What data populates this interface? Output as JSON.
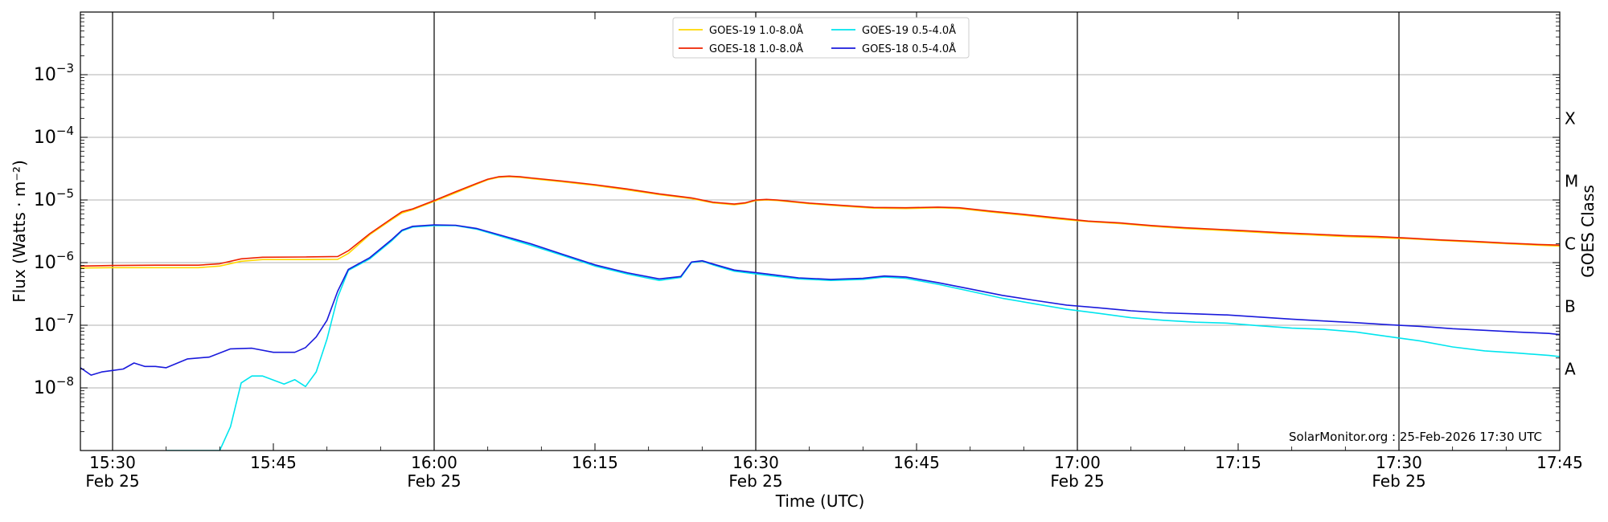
{
  "chart_data": {
    "type": "line",
    "xlabel": "Time (UTC)",
    "ylabel": "Flux (Watts · m⁻²)",
    "y2label": "GOES Class",
    "yscale": "log",
    "xlim": [
      "2026-02-25T15:27",
      "2026-02-25T17:45"
    ],
    "ylim": [
      1e-09,
      0.01
    ],
    "grid": "horizontal",
    "legend_position": "top-center",
    "footer": "SolarMonitor.org : 25-Feb-2026 17:30 UTC",
    "x_ticks": [
      {
        "time": "2026-02-25T15:30",
        "label": "15:30",
        "sublabel": "Feb 25"
      },
      {
        "time": "2026-02-25T15:45",
        "label": "15:45",
        "sublabel": ""
      },
      {
        "time": "2026-02-25T16:00",
        "label": "16:00",
        "sublabel": "Feb 25"
      },
      {
        "time": "2026-02-25T16:15",
        "label": "16:15",
        "sublabel": ""
      },
      {
        "time": "2026-02-25T16:30",
        "label": "16:30",
        "sublabel": "Feb 25"
      },
      {
        "time": "2026-02-25T16:45",
        "label": "16:45",
        "sublabel": ""
      },
      {
        "time": "2026-02-25T17:00",
        "label": "17:00",
        "sublabel": "Feb 25"
      },
      {
        "time": "2026-02-25T17:15",
        "label": "17:15",
        "sublabel": ""
      },
      {
        "time": "2026-02-25T17:30",
        "label": "17:30",
        "sublabel": "Feb 25"
      },
      {
        "time": "2026-02-25T17:45",
        "label": "17:45",
        "sublabel": ""
      }
    ],
    "vertical_lines": [
      "2026-02-25T15:30",
      "2026-02-25T16:00",
      "2026-02-25T16:30",
      "2026-02-25T17:00",
      "2026-02-25T17:30"
    ],
    "y_ticks": [
      {
        "base": "10",
        "exp": "−3",
        "value": 0.001
      },
      {
        "base": "10",
        "exp": "−4",
        "value": 0.0001
      },
      {
        "base": "10",
        "exp": "−5",
        "value": 1e-05
      },
      {
        "base": "10",
        "exp": "−6",
        "value": 1e-06
      },
      {
        "base": "10",
        "exp": "−7",
        "value": 1e-07
      },
      {
        "base": "10",
        "exp": "−8",
        "value": 1e-08
      }
    ],
    "goes_classes": [
      {
        "label": "X",
        "value": 0.0002
      },
      {
        "label": "M",
        "value": 2e-05
      },
      {
        "label": "C",
        "value": 2e-06
      },
      {
        "label": "B",
        "value": 2e-07
      },
      {
        "label": "A",
        "value": 2e-08
      }
    ],
    "series": [
      {
        "name": "GOES-19 1.0-8.0Å",
        "color": "#ffd700",
        "points": [
          [
            "15:27",
            8.2e-07
          ],
          [
            "15:30",
            8.3e-07
          ],
          [
            "15:34",
            8.3e-07
          ],
          [
            "15:38",
            8.3e-07
          ],
          [
            "15:40",
            8.8e-07
          ],
          [
            "15:42",
            1.05e-06
          ],
          [
            "15:44",
            1.12e-06
          ],
          [
            "15:48",
            1.12e-06
          ],
          [
            "15:51",
            1.13e-06
          ],
          [
            "15:52",
            1.4e-06
          ],
          [
            "15:54",
            2.8e-06
          ],
          [
            "15:56",
            4.8e-06
          ],
          [
            "15:57",
            6.2e-06
          ],
          [
            "15:58",
            7e-06
          ],
          [
            "16:00",
            9.5e-06
          ],
          [
            "16:02",
            1.3e-05
          ],
          [
            "16:04",
            1.8e-05
          ],
          [
            "16:05",
            2.1e-05
          ],
          [
            "16:06",
            2.3e-05
          ],
          [
            "16:07",
            2.35e-05
          ],
          [
            "16:08",
            2.3e-05
          ],
          [
            "16:09",
            2.2e-05
          ],
          [
            "16:12",
            1.95e-05
          ],
          [
            "16:15",
            1.7e-05
          ],
          [
            "16:18",
            1.45e-05
          ],
          [
            "16:21",
            1.22e-05
          ],
          [
            "16:24",
            1.05e-05
          ],
          [
            "16:26",
            9e-06
          ],
          [
            "16:28",
            8.4e-06
          ],
          [
            "16:29",
            8.8e-06
          ],
          [
            "16:30",
            9.8e-06
          ],
          [
            "16:31",
            1e-05
          ],
          [
            "16:32",
            9.8e-06
          ],
          [
            "16:35",
            8.7e-06
          ],
          [
            "16:38",
            8e-06
          ],
          [
            "16:41",
            7.4e-06
          ],
          [
            "16:44",
            7.3e-06
          ],
          [
            "16:47",
            7.5e-06
          ],
          [
            "16:49",
            7.3e-06
          ],
          [
            "16:52",
            6.4e-06
          ],
          [
            "16:55",
            5.7e-06
          ],
          [
            "16:58",
            5e-06
          ],
          [
            "17:01",
            4.5e-06
          ],
          [
            "17:04",
            4.2e-06
          ],
          [
            "17:07",
            3.8e-06
          ],
          [
            "17:10",
            3.5e-06
          ],
          [
            "17:13",
            3.3e-06
          ],
          [
            "17:16",
            3.1e-06
          ],
          [
            "17:19",
            2.9e-06
          ],
          [
            "17:22",
            2.75e-06
          ],
          [
            "17:25",
            2.6e-06
          ],
          [
            "17:28",
            2.5e-06
          ],
          [
            "17:31",
            2.4e-06
          ],
          [
            "17:34",
            2.25e-06
          ],
          [
            "17:37",
            2.12e-06
          ],
          [
            "17:40",
            2e-06
          ],
          [
            "17:43",
            1.9e-06
          ],
          [
            "17:46",
            1.8e-06
          ],
          [
            "17:49",
            1.72e-06
          ]
        ]
      },
      {
        "name": "GOES-18 1.0-8.0Å",
        "color": "#ee2200",
        "points": [
          [
            "15:27",
            8.8e-07
          ],
          [
            "15:30",
            9e-07
          ],
          [
            "15:34",
            9.1e-07
          ],
          [
            "15:38",
            9.1e-07
          ],
          [
            "15:40",
            9.6e-07
          ],
          [
            "15:42",
            1.15e-06
          ],
          [
            "15:44",
            1.22e-06
          ],
          [
            "15:48",
            1.23e-06
          ],
          [
            "15:51",
            1.25e-06
          ],
          [
            "15:52",
            1.55e-06
          ],
          [
            "15:54",
            2.9e-06
          ],
          [
            "15:56",
            5e-06
          ],
          [
            "15:57",
            6.5e-06
          ],
          [
            "15:58",
            7.2e-06
          ],
          [
            "16:00",
            9.8e-06
          ],
          [
            "16:02",
            1.35e-05
          ],
          [
            "16:04",
            1.85e-05
          ],
          [
            "16:05",
            2.15e-05
          ],
          [
            "16:06",
            2.35e-05
          ],
          [
            "16:07",
            2.4e-05
          ],
          [
            "16:08",
            2.35e-05
          ],
          [
            "16:09",
            2.25e-05
          ],
          [
            "16:12",
            2e-05
          ],
          [
            "16:15",
            1.75e-05
          ],
          [
            "16:18",
            1.5e-05
          ],
          [
            "16:21",
            1.25e-05
          ],
          [
            "16:24",
            1.08e-05
          ],
          [
            "16:26",
            9.2e-06
          ],
          [
            "16:28",
            8.6e-06
          ],
          [
            "16:29",
            9e-06
          ],
          [
            "16:30",
            1e-05
          ],
          [
            "16:31",
            1.02e-05
          ],
          [
            "16:32",
            1e-05
          ],
          [
            "16:35",
            8.9e-06
          ],
          [
            "16:38",
            8.2e-06
          ],
          [
            "16:41",
            7.6e-06
          ],
          [
            "16:44",
            7.5e-06
          ],
          [
            "16:47",
            7.7e-06
          ],
          [
            "16:49",
            7.5e-06
          ],
          [
            "16:52",
            6.6e-06
          ],
          [
            "16:55",
            5.9e-06
          ],
          [
            "16:58",
            5.2e-06
          ],
          [
            "17:01",
            4.6e-06
          ],
          [
            "17:04",
            4.3e-06
          ],
          [
            "17:07",
            3.9e-06
          ],
          [
            "17:10",
            3.6e-06
          ],
          [
            "17:13",
            3.4e-06
          ],
          [
            "17:16",
            3.2e-06
          ],
          [
            "17:19",
            3e-06
          ],
          [
            "17:22",
            2.85e-06
          ],
          [
            "17:25",
            2.7e-06
          ],
          [
            "17:28",
            2.6e-06
          ],
          [
            "17:31",
            2.45e-06
          ],
          [
            "17:34",
            2.3e-06
          ],
          [
            "17:37",
            2.18e-06
          ],
          [
            "17:40",
            2.05e-06
          ],
          [
            "17:43",
            1.95e-06
          ],
          [
            "17:46",
            1.88e-06
          ],
          [
            "17:49",
            1.82e-06
          ]
        ]
      },
      {
        "name": "GOES-19 0.5-4.0Å",
        "color": "#00e5ee",
        "points": [
          [
            "15:35",
            1e-09
          ],
          [
            "15:38",
            1e-09
          ],
          [
            "15:40",
            1e-09
          ],
          [
            "15:41",
            2.4e-09
          ],
          [
            "15:42",
            1.2e-08
          ],
          [
            "15:43",
            1.55e-08
          ],
          [
            "15:44",
            1.55e-08
          ],
          [
            "15:46",
            1.15e-08
          ],
          [
            "15:47",
            1.35e-08
          ],
          [
            "15:48",
            1.05e-08
          ],
          [
            "15:49",
            1.8e-08
          ],
          [
            "15:50",
            6e-08
          ],
          [
            "15:51",
            2.8e-07
          ],
          [
            "15:52",
            7.5e-07
          ],
          [
            "15:54",
            1.15e-06
          ],
          [
            "15:56",
            2.2e-06
          ],
          [
            "15:57",
            3.2e-06
          ],
          [
            "15:58",
            3.7e-06
          ],
          [
            "16:00",
            3.9e-06
          ],
          [
            "16:02",
            3.9e-06
          ],
          [
            "16:04",
            3.4e-06
          ],
          [
            "16:06",
            2.7e-06
          ],
          [
            "16:09",
            1.9e-06
          ],
          [
            "16:12",
            1.3e-06
          ],
          [
            "16:15",
            8.8e-07
          ],
          [
            "16:18",
            6.6e-07
          ],
          [
            "16:21",
            5.2e-07
          ],
          [
            "16:23",
            5.8e-07
          ],
          [
            "16:24",
            1e-06
          ],
          [
            "16:25",
            1.05e-06
          ],
          [
            "16:26",
            9.2e-07
          ],
          [
            "16:28",
            7.3e-07
          ],
          [
            "16:31",
            6.3e-07
          ],
          [
            "16:34",
            5.5e-07
          ],
          [
            "16:37",
            5.2e-07
          ],
          [
            "16:40",
            5.4e-07
          ],
          [
            "16:42",
            5.9e-07
          ],
          [
            "16:44",
            5.6e-07
          ],
          [
            "16:47",
            4.5e-07
          ],
          [
            "16:50",
            3.5e-07
          ],
          [
            "16:53",
            2.7e-07
          ],
          [
            "16:56",
            2.2e-07
          ],
          [
            "16:59",
            1.8e-07
          ],
          [
            "17:02",
            1.55e-07
          ],
          [
            "17:05",
            1.32e-07
          ],
          [
            "17:08",
            1.2e-07
          ],
          [
            "17:11",
            1.12e-07
          ],
          [
            "17:14",
            1.08e-07
          ],
          [
            "17:17",
            9.8e-08
          ],
          [
            "17:20",
            9e-08
          ],
          [
            "17:23",
            8.6e-08
          ],
          [
            "17:26",
            7.8e-08
          ],
          [
            "17:29",
            6.6e-08
          ],
          [
            "17:32",
            5.6e-08
          ],
          [
            "17:35",
            4.5e-08
          ],
          [
            "17:38",
            3.9e-08
          ],
          [
            "17:41",
            3.6e-08
          ],
          [
            "17:44",
            3.3e-08
          ],
          [
            "17:47",
            2.9e-08
          ],
          [
            "17:48",
            2.2e-08
          ],
          [
            "17:49",
            1.9e-08
          ],
          [
            "17:52",
            1.9e-08
          ]
        ]
      },
      {
        "name": "GOES-18 0.5-4.0Å",
        "color": "#1a1adc",
        "points": [
          [
            "15:27",
            2.1e-08
          ],
          [
            "15:28",
            1.6e-08
          ],
          [
            "15:29",
            1.8e-08
          ],
          [
            "15:30",
            1.9e-08
          ],
          [
            "15:31",
            2e-08
          ],
          [
            "15:32",
            2.5e-08
          ],
          [
            "15:33",
            2.2e-08
          ],
          [
            "15:34",
            2.2e-08
          ],
          [
            "15:35",
            2.1e-08
          ],
          [
            "15:37",
            2.9e-08
          ],
          [
            "15:39",
            3.1e-08
          ],
          [
            "15:41",
            4.2e-08
          ],
          [
            "15:43",
            4.3e-08
          ],
          [
            "15:45",
            3.7e-08
          ],
          [
            "15:47",
            3.7e-08
          ],
          [
            "15:48",
            4.4e-08
          ],
          [
            "15:49",
            6.5e-08
          ],
          [
            "15:50",
            1.2e-07
          ],
          [
            "15:51",
            3.5e-07
          ],
          [
            "15:52",
            7.8e-07
          ],
          [
            "15:54",
            1.2e-06
          ],
          [
            "15:56",
            2.3e-06
          ],
          [
            "15:57",
            3.3e-06
          ],
          [
            "15:58",
            3.8e-06
          ],
          [
            "16:00",
            4e-06
          ],
          [
            "16:02",
            3.95e-06
          ],
          [
            "16:04",
            3.5e-06
          ],
          [
            "16:06",
            2.8e-06
          ],
          [
            "16:09",
            2e-06
          ],
          [
            "16:12",
            1.35e-06
          ],
          [
            "16:15",
            9.2e-07
          ],
          [
            "16:18",
            6.9e-07
          ],
          [
            "16:21",
            5.5e-07
          ],
          [
            "16:23",
            6e-07
          ],
          [
            "16:24",
            1.02e-06
          ],
          [
            "16:25",
            1.07e-06
          ],
          [
            "16:26",
            9.5e-07
          ],
          [
            "16:28",
            7.6e-07
          ],
          [
            "16:31",
            6.6e-07
          ],
          [
            "16:34",
            5.7e-07
          ],
          [
            "16:37",
            5.4e-07
          ],
          [
            "16:40",
            5.6e-07
          ],
          [
            "16:42",
            6.1e-07
          ],
          [
            "16:44",
            5.9e-07
          ],
          [
            "16:47",
            4.8e-07
          ],
          [
            "16:50",
            3.8e-07
          ],
          [
            "16:53",
            3e-07
          ],
          [
            "16:56",
            2.5e-07
          ],
          [
            "16:59",
            2.1e-07
          ],
          [
            "17:02",
            1.9e-07
          ],
          [
            "17:05",
            1.7e-07
          ],
          [
            "17:08",
            1.58e-07
          ],
          [
            "17:11",
            1.52e-07
          ],
          [
            "17:14",
            1.46e-07
          ],
          [
            "17:17",
            1.35e-07
          ],
          [
            "17:20",
            1.25e-07
          ],
          [
            "17:23",
            1.17e-07
          ],
          [
            "17:26",
            1.1e-07
          ],
          [
            "17:29",
            1.02e-07
          ],
          [
            "17:32",
            9.6e-08
          ],
          [
            "17:35",
            8.8e-08
          ],
          [
            "17:38",
            8.3e-08
          ],
          [
            "17:41",
            7.8e-08
          ],
          [
            "17:44",
            7.4e-08
          ],
          [
            "17:47",
            6.5e-08
          ],
          [
            "17:48",
            6.2e-08
          ],
          [
            "17:50",
            6.1e-08
          ],
          [
            "17:52",
            6.2e-08
          ]
        ]
      }
    ]
  }
}
